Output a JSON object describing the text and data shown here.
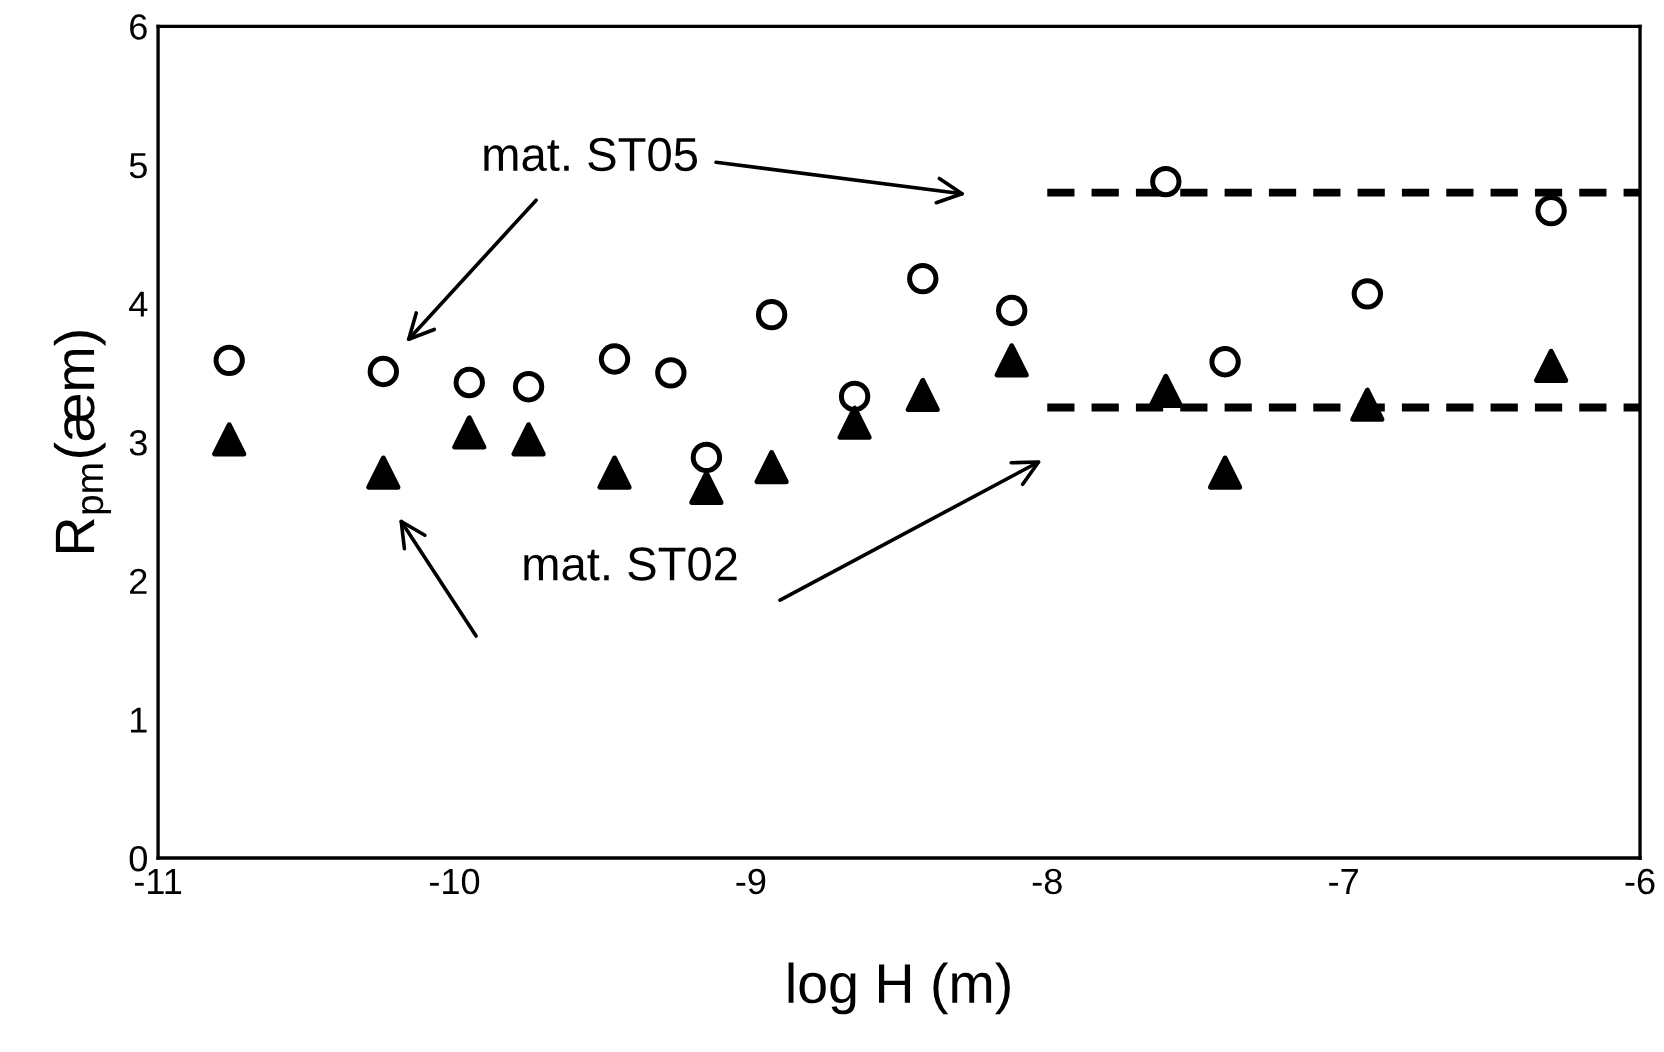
{
  "chart_data": {
    "type": "scatter",
    "xlabel": "log H (m)",
    "ylabel": "R$_{pm}$(æm)",
    "xlim": [
      -11,
      -6
    ],
    "xticks": [
      -11,
      -10,
      -9,
      -8,
      -7,
      -6
    ],
    "ylim": [
      0,
      6
    ],
    "yticks": [
      0,
      1,
      2,
      3,
      4,
      5,
      6
    ],
    "grid": false,
    "legend": false,
    "series": [
      {
        "marker": "circle",
        "color": "#000000",
        "x": [
          -10.76,
          -10.24,
          -9.95,
          -9.75,
          -9.46,
          -9.27,
          -9.15,
          -8.93,
          -8.65,
          -8.42,
          -8.12,
          -7.6,
          -7.4,
          -6.92,
          -6.3
        ],
        "values": [
          3.59,
          3.51,
          3.43,
          3.4,
          3.6,
          3.5,
          2.89,
          3.92,
          3.33,
          4.18,
          3.95,
          4.88,
          3.58,
          4.07,
          4.67
        ]
      },
      {
        "marker": "triangle",
        "color": "#000000",
        "x": [
          -10.76,
          -10.24,
          -9.95,
          -9.75,
          -9.46,
          -9.15,
          -8.93,
          -8.65,
          -8.42,
          -8.12,
          -7.6,
          -7.4,
          -6.92,
          -6.3
        ],
        "values": [
          3.02,
          2.78,
          3.07,
          3.02,
          2.78,
          2.67,
          2.82,
          3.14,
          3.34,
          3.59,
          3.37,
          2.78,
          3.27,
          3.55
        ]
      },
      {
        "type": "line",
        "line_style": "dashed",
        "color": "#000000",
        "x": [
          -8,
          -6
        ],
        "values": [
          4.8,
          4.8
        ]
      },
      {
        "type": "line",
        "line_style": "dashed",
        "color": "#000000",
        "x": [
          -8,
          -6
        ],
        "values": [
          3.25,
          3.25
        ]
      }
    ],
    "annotations": [
      "mat. ST05",
      "mat. ST02"
    ]
  }
}
